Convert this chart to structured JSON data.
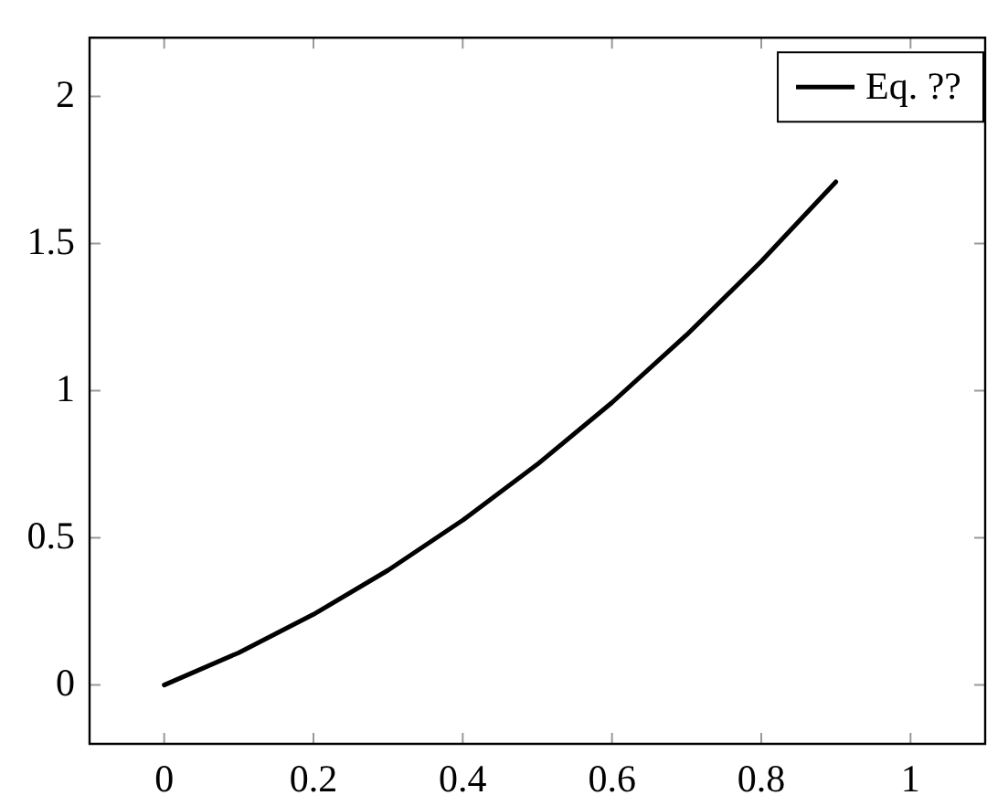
{
  "chart_data": {
    "type": "line",
    "x": [
      0,
      0.1,
      0.2,
      0.3,
      0.4,
      0.5,
      0.6,
      0.7,
      0.8,
      0.9
    ],
    "series": [
      {
        "name": "Eq. ??",
        "color": "#000000",
        "values": [
          0,
          0.11,
          0.24,
          0.39,
          0.56,
          0.75,
          0.96,
          1.19,
          1.44,
          1.71
        ]
      }
    ],
    "xlim": [
      -0.1,
      1.1
    ],
    "xticks": [
      0,
      0.2,
      0.4,
      0.6,
      0.8,
      1
    ],
    "ylim": [
      -0.2,
      2.2
    ],
    "yticks": [
      0,
      0.5,
      1,
      1.5,
      2
    ],
    "legend": "top right",
    "marker": "none",
    "line_style": "solid",
    "grid": false
  }
}
